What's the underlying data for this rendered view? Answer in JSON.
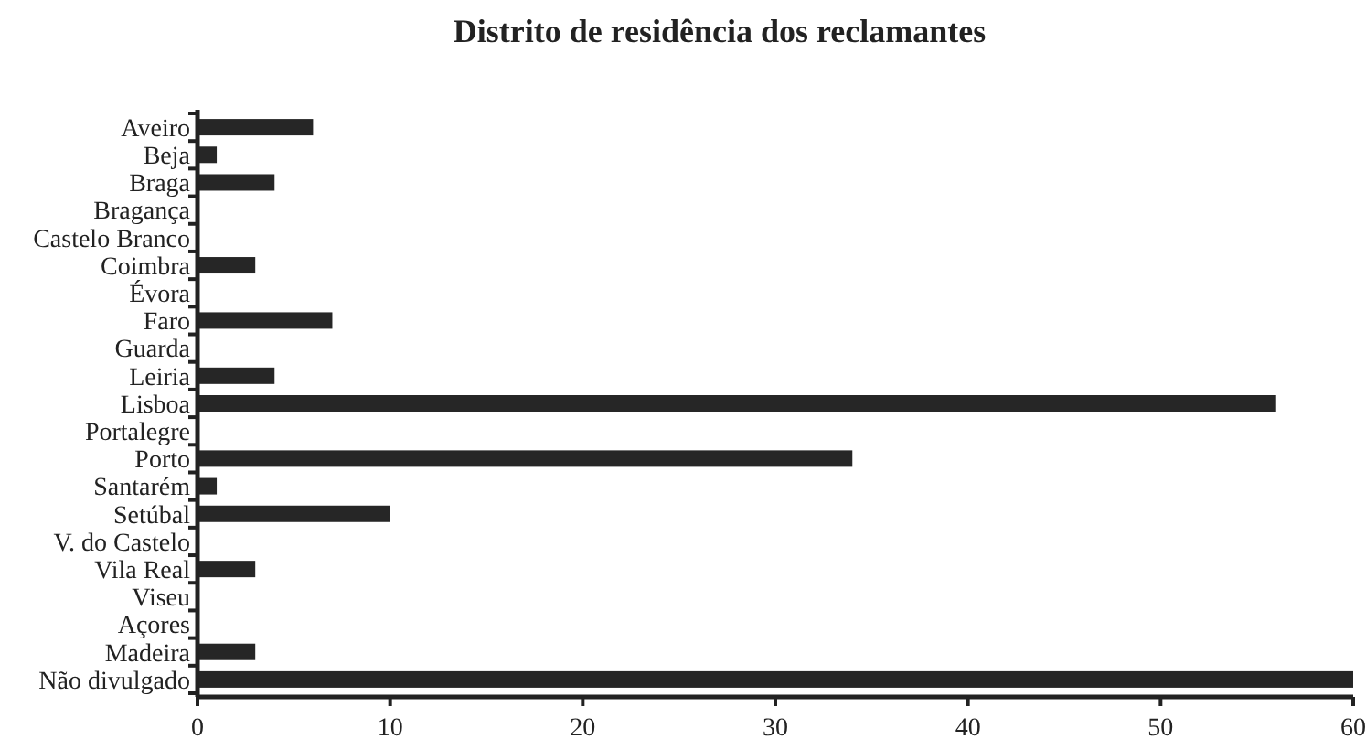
{
  "chart_data": {
    "type": "bar",
    "orientation": "horizontal",
    "title": "Distrito de residência dos reclamantes",
    "categories": [
      "Aveiro",
      "Beja",
      "Braga",
      "Bragança",
      "Castelo Branco",
      "Coimbra",
      "Évora",
      "Faro",
      "Guarda",
      "Leiria",
      "Lisboa",
      "Portalegre",
      "Porto",
      "Santarém",
      "Setúbal",
      "V. do Castelo",
      "Vila Real",
      "Viseu",
      "Açores",
      "Madeira",
      "Não divulgado"
    ],
    "values": [
      6,
      1,
      4,
      0,
      0,
      3,
      0,
      7,
      0,
      4,
      56,
      0,
      34,
      1,
      10,
      0,
      3,
      0,
      0,
      3,
      60
    ],
    "color": "#262626",
    "xlim": [
      0,
      60
    ],
    "xticks": [
      0,
      10,
      20,
      30,
      40,
      50,
      60
    ],
    "grid": false
  }
}
